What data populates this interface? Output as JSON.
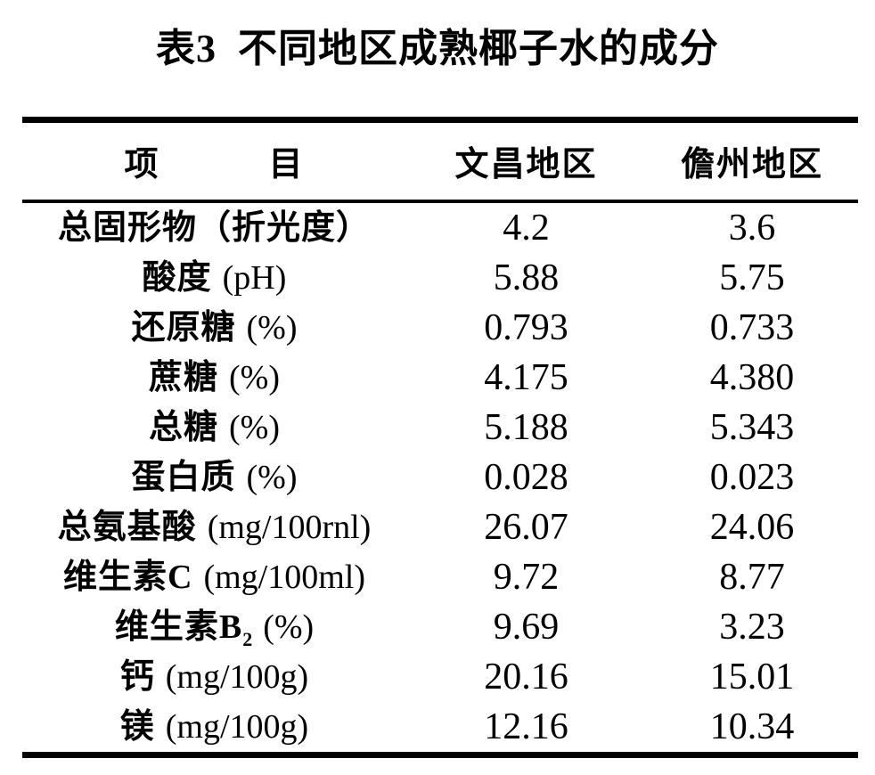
{
  "title": "表3  不同地区成熟椰子水的成分",
  "colors": {
    "text": "#000000",
    "background": "#ffffff",
    "rule": "#000000"
  },
  "table": {
    "header": {
      "item_left": "项",
      "item_right": "目",
      "region1": "文昌地区",
      "region2": "儋州地区"
    },
    "rows": [
      {
        "zh": "总固形物（折光度）",
        "sub": "",
        "unit": "",
        "wenchang": "4.2",
        "danzhou": "3.6"
      },
      {
        "zh": "酸度",
        "sub": "",
        "unit": "(pH)",
        "wenchang": "5.88",
        "danzhou": "5.75"
      },
      {
        "zh": "还原糖",
        "sub": "",
        "unit": "(%)",
        "wenchang": "0.793",
        "danzhou": "0.733"
      },
      {
        "zh": "蔗糖",
        "sub": "",
        "unit": "(%)",
        "wenchang": "4.175",
        "danzhou": "4.380"
      },
      {
        "zh": "总糖",
        "sub": "",
        "unit": "(%)",
        "wenchang": "5.188",
        "danzhou": "5.343"
      },
      {
        "zh": "蛋白质",
        "sub": "",
        "unit": "(%)",
        "wenchang": "0.028",
        "danzhou": "0.023"
      },
      {
        "zh": "总氨基酸",
        "sub": "",
        "unit": "(mg/100rnl)",
        "wenchang": "26.07",
        "danzhou": "24.06"
      },
      {
        "zh": "维生素C",
        "sub": "",
        "unit": "(mg/100ml)",
        "wenchang": "9.72",
        "danzhou": "8.77"
      },
      {
        "zh": "维生素B",
        "sub": "2",
        "unit": "(%)",
        "wenchang": "9.69",
        "danzhou": "3.23"
      },
      {
        "zh": "钙",
        "sub": "",
        "unit": "(mg/100g)",
        "wenchang": "20.16",
        "danzhou": "15.01"
      },
      {
        "zh": "镁",
        "sub": "",
        "unit": "(mg/100g)",
        "wenchang": "12.16",
        "danzhou": "10.34"
      }
    ]
  }
}
